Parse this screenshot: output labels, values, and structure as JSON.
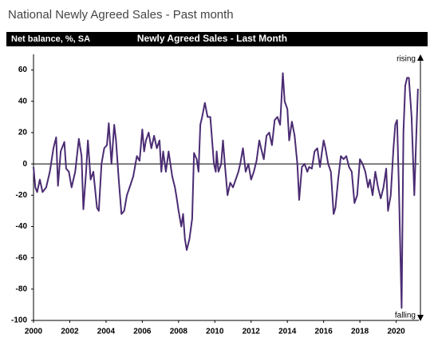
{
  "chart_data": {
    "type": "line",
    "title": "National Newly Agreed Sales - Past month",
    "y_label": "Net balance, %, SA",
    "subtitle": "Newly Agreed Sales - Last Month",
    "annotations": [
      "rising",
      "falling"
    ],
    "x": [
      2000.0,
      2000.1,
      2000.2,
      2000.35,
      2000.5,
      2000.7,
      2000.9,
      2001.1,
      2001.25,
      2001.35,
      2001.5,
      2001.7,
      2001.8,
      2001.95,
      2002.1,
      2002.3,
      2002.5,
      2002.65,
      2002.75,
      2002.9,
      2003.0,
      2003.15,
      2003.3,
      2003.5,
      2003.6,
      2003.75,
      2003.9,
      2004.05,
      2004.15,
      2004.3,
      2004.45,
      2004.55,
      2004.7,
      2004.85,
      2005.0,
      2005.15,
      2005.3,
      2005.5,
      2005.7,
      2005.85,
      2006.0,
      2006.1,
      2006.2,
      2006.35,
      2006.5,
      2006.65,
      2006.8,
      2006.95,
      2007.05,
      2007.15,
      2007.3,
      2007.45,
      2007.55,
      2007.65,
      2007.8,
      2007.9,
      2008.0,
      2008.15,
      2008.25,
      2008.35,
      2008.45,
      2008.6,
      2008.75,
      2008.85,
      2009.0,
      2009.1,
      2009.2,
      2009.3,
      2009.45,
      2009.6,
      2009.75,
      2009.85,
      2009.95,
      2010.05,
      2010.1,
      2010.2,
      2010.35,
      2010.45,
      2010.55,
      2010.7,
      2010.85,
      2011.0,
      2011.15,
      2011.3,
      2011.4,
      2011.55,
      2011.7,
      2011.85,
      2012.0,
      2012.15,
      2012.3,
      2012.45,
      2012.55,
      2012.7,
      2012.85,
      2013.0,
      2013.15,
      2013.3,
      2013.45,
      2013.6,
      2013.75,
      2013.85,
      2014.0,
      2014.1,
      2014.25,
      2014.4,
      2014.55,
      2014.65,
      2014.8,
      2014.95,
      2015.1,
      2015.2,
      2015.35,
      2015.5,
      2015.65,
      2015.8,
      2015.9,
      2016.0,
      2016.1,
      2016.25,
      2016.4,
      2016.55,
      2016.65,
      2016.8,
      2016.95,
      2017.1,
      2017.25,
      2017.4,
      2017.55,
      2017.7,
      2017.85,
      2018.0,
      2018.15,
      2018.3,
      2018.45,
      2018.55,
      2018.7,
      2018.85,
      2019.0,
      2019.15,
      2019.3,
      2019.45,
      2019.55,
      2019.7,
      2019.85,
      2019.95,
      2020.05,
      2020.15,
      2020.3,
      2020.4,
      2020.5,
      2020.6,
      2020.7,
      2020.85,
      2021.0,
      2021.1,
      2021.2
    ],
    "series": [
      {
        "name": "Newly Agreed Sales",
        "color": "#4b2c73",
        "values": [
          -2,
          -15,
          -18,
          -10,
          -18,
          -15,
          -5,
          10,
          17,
          -14,
          8,
          14,
          -3,
          -5,
          -15,
          -5,
          16,
          5,
          -29,
          -5,
          15,
          -10,
          -5,
          -28,
          -30,
          0,
          10,
          12,
          26,
          0,
          25,
          15,
          -10,
          -32,
          -30,
          -20,
          -15,
          -8,
          5,
          2,
          22,
          8,
          15,
          20,
          10,
          18,
          10,
          15,
          -5,
          8,
          -5,
          8,
          0,
          -8,
          -15,
          -22,
          -30,
          -40,
          -32,
          -48,
          -55,
          -48,
          -35,
          7,
          3,
          -5,
          25,
          30,
          39,
          30,
          30,
          15,
          0,
          -5,
          8,
          -5,
          0,
          15,
          0,
          -20,
          -12,
          -15,
          -10,
          -5,
          0,
          10,
          -5,
          0,
          -10,
          -5,
          2,
          15,
          10,
          3,
          18,
          20,
          12,
          28,
          30,
          25,
          58,
          40,
          35,
          15,
          27,
          18,
          0,
          -23,
          -2,
          0,
          -5,
          -2,
          -3,
          8,
          10,
          -2,
          7,
          15,
          10,
          0,
          -5,
          -32,
          -28,
          -10,
          5,
          3,
          5,
          -2,
          -5,
          -25,
          -20,
          3,
          0,
          -5,
          -15,
          -10,
          -20,
          -5,
          -15,
          -22,
          -15,
          -3,
          -30,
          -20,
          10,
          25,
          28,
          -15,
          -92,
          20,
          50,
          55,
          55,
          30,
          -20,
          15,
          48
        ]
      }
    ],
    "xlim": [
      2000,
      2021.25
    ],
    "xticks": [
      2000,
      2002,
      2004,
      2006,
      2008,
      2010,
      2012,
      2014,
      2016,
      2018,
      2020
    ],
    "ylim": [
      -100,
      70
    ],
    "yticks": [
      -100,
      -80,
      -60,
      -40,
      -20,
      0,
      20,
      40,
      60
    ]
  }
}
